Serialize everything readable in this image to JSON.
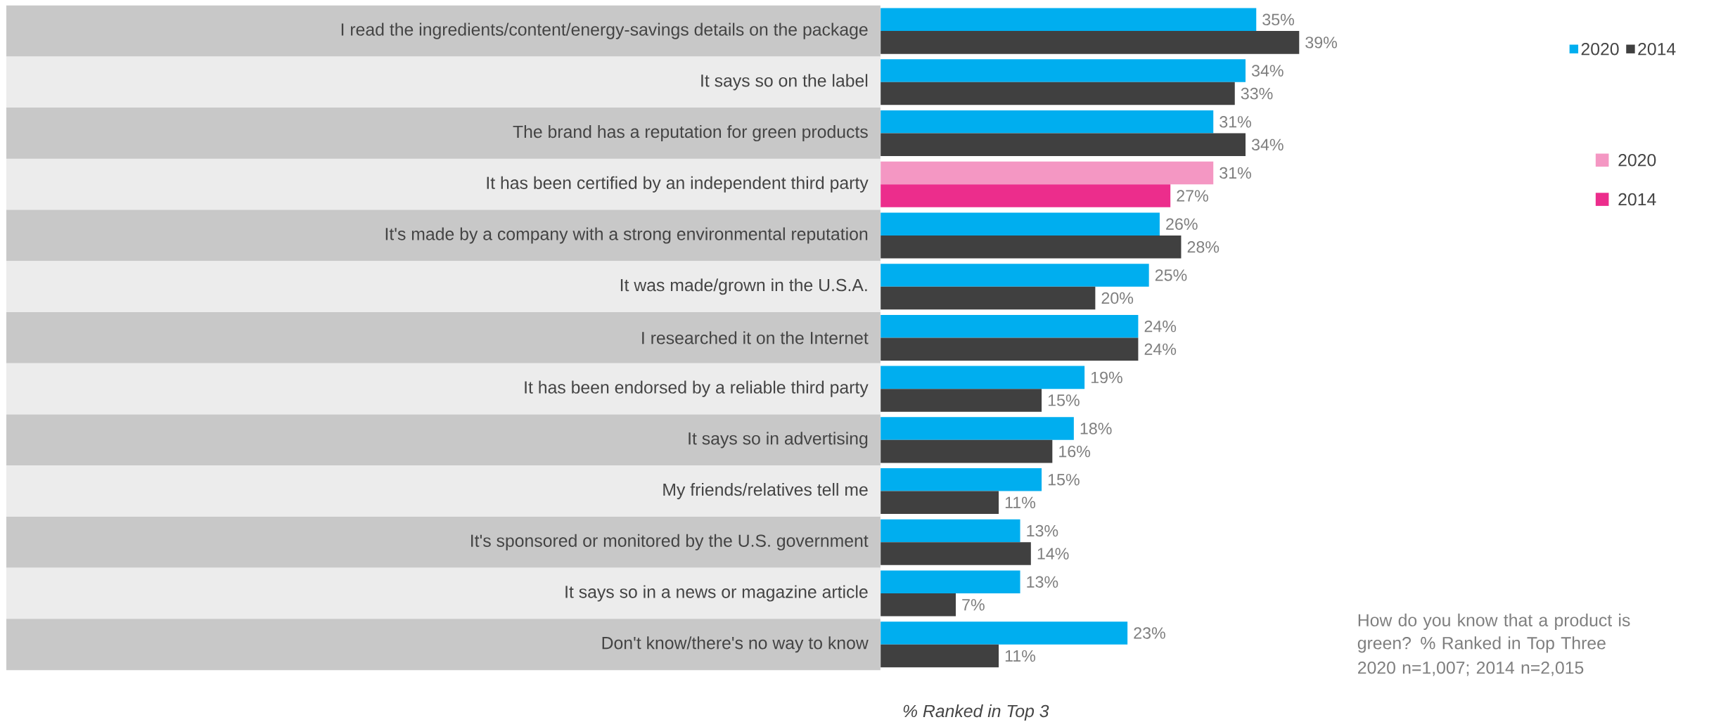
{
  "chart_data": {
    "type": "bar",
    "orientation": "horizontal",
    "categories": [
      "I read the ingredients/content/energy-savings details on the package",
      "It says so on the label",
      "The brand has a reputation for green products",
      "It has been certified by an independent third party",
      "It's made by a company with a strong environmental reputation",
      "It was made/grown in the U.S.A.",
      "I researched it on the Internet",
      "It has been endorsed by a reliable third party",
      "It says so in advertising",
      "My friends/relatives tell me",
      "It's sponsored or monitored by the U.S. government",
      "It says so in a news or magazine article",
      "Don't know/there's no way to know"
    ],
    "series": [
      {
        "name": "2020",
        "color": "#00aeef",
        "colors": [
          "#00aeef",
          "#00aeef",
          "#00aeef",
          "#f497c3",
          "#00aeef",
          "#00aeef",
          "#00aeef",
          "#00aeef",
          "#00aeef",
          "#00aeef",
          "#00aeef",
          "#00aeef",
          "#00aeef"
        ],
        "values": [
          35,
          34,
          31,
          31,
          26,
          25,
          24,
          19,
          18,
          15,
          13,
          13,
          23
        ],
        "value_labels": [
          "35%",
          "34%",
          "31%",
          "31%",
          "26%",
          "25%",
          "24%",
          "19%",
          "18%",
          "15%",
          "13%",
          "13%",
          "23%"
        ]
      },
      {
        "name": "2014",
        "color": "#404040",
        "colors": [
          "#404040",
          "#404040",
          "#404040",
          "#ec2d8c",
          "#404040",
          "#404040",
          "#404040",
          "#404040",
          "#404040",
          "#404040",
          "#404040",
          "#404040",
          "#404040"
        ],
        "values": [
          39,
          33,
          34,
          27,
          28,
          20,
          24,
          15,
          16,
          11,
          14,
          7,
          11
        ],
        "value_labels": [
          "39%",
          "33%",
          "34%",
          "27%",
          "28%",
          "20%",
          "24%",
          "15%",
          "16%",
          "11%",
          "14%",
          "7%",
          "11%"
        ]
      }
    ],
    "xlabel": "% Ranked in Top 3",
    "annotations": [
      "How do you know that a product is green? % Ranked in Top Three",
      "2020 n=1,007; 2014 n=2,015"
    ],
    "legend": "top right",
    "tick_labels": "y"
  }
}
